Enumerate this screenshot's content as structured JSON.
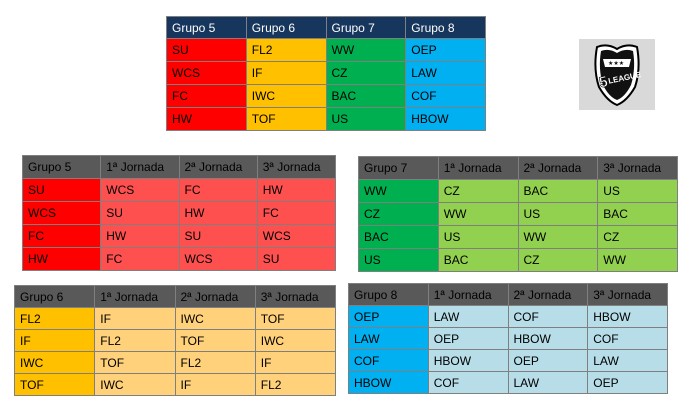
{
  "main_table": {
    "headers": [
      "Grupo 5",
      "Grupo 6",
      "Grupo 7",
      "Grupo 8"
    ],
    "rows": [
      [
        "SU",
        "FL2",
        "WW",
        "OEP"
      ],
      [
        "WCS",
        "IF",
        "CZ",
        "LAW"
      ],
      [
        "FC",
        "IWC",
        "BAC",
        "COF"
      ],
      [
        "HW",
        "TOF",
        "US",
        "HBOW"
      ]
    ],
    "colors": [
      "#ff0000",
      "#ffc000",
      "#00b050",
      "#00b0f0"
    ]
  },
  "logo": {
    "text": "5LEAGUE",
    "icon": "league-shield-logo"
  },
  "schedules": {
    "g5": {
      "headers": [
        "Grupo 5",
        "1ª Jornada",
        "2ª Jornada",
        "3ª Jornada"
      ],
      "rows": [
        [
          "SU",
          "WCS",
          "FC",
          "HW"
        ],
        [
          "WCS",
          "SU",
          "HW",
          "FC"
        ],
        [
          "FC",
          "HW",
          "SU",
          "WCS"
        ],
        [
          "HW",
          "FC",
          "WCS",
          "SU"
        ]
      ]
    },
    "g7": {
      "headers": [
        "Grupo 7",
        "1ª Jornada",
        "2ª Jornada",
        "3ª Jornada"
      ],
      "rows": [
        [
          "WW",
          "CZ",
          "BAC",
          "US"
        ],
        [
          "CZ",
          "WW",
          "US",
          "BAC"
        ],
        [
          "BAC",
          "US",
          "WW",
          "CZ"
        ],
        [
          "US",
          "BAC",
          "CZ",
          "WW"
        ]
      ]
    },
    "g6": {
      "headers": [
        "Grupo 6",
        "1ª Jornada",
        "2ª Jornada",
        "3ª Jornada"
      ],
      "rows": [
        [
          "FL2",
          "IF",
          "IWC",
          "TOF"
        ],
        [
          "IF",
          "FL2",
          "TOF",
          "IWC"
        ],
        [
          "IWC",
          "TOF",
          "FL2",
          "IF"
        ],
        [
          "TOF",
          "IWC",
          "IF",
          "FL2"
        ]
      ]
    },
    "g8": {
      "headers": [
        "Grupo 8",
        "1ª Jornada",
        "2ª Jornada",
        "3ª Jornada"
      ],
      "rows": [
        [
          "OEP",
          "LAW",
          "COF",
          "HBOW"
        ],
        [
          "LAW",
          "OEP",
          "HBOW",
          "COF"
        ],
        [
          "COF",
          "HBOW",
          "OEP",
          "LAW"
        ],
        [
          "HBOW",
          "COF",
          "LAW",
          "OEP"
        ]
      ]
    }
  }
}
